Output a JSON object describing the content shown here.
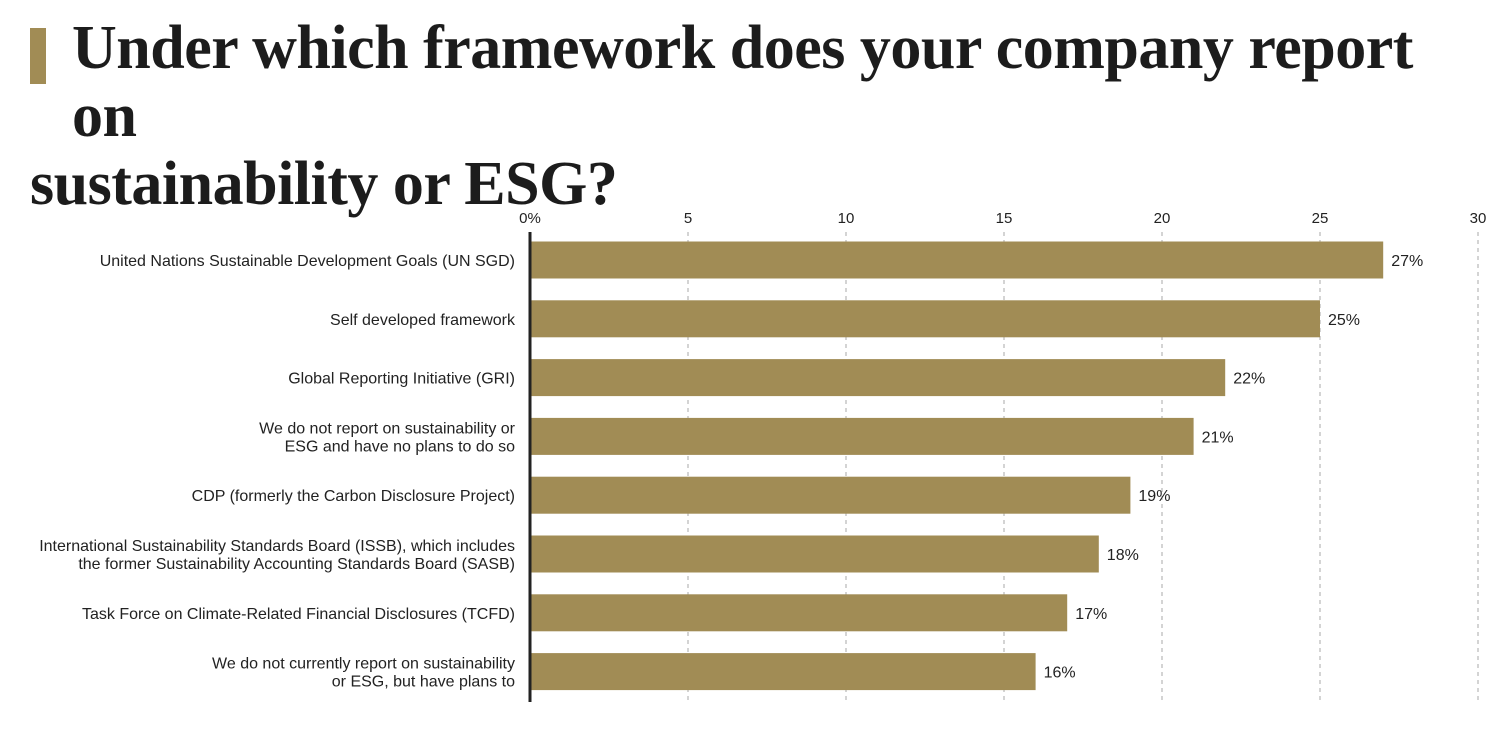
{
  "title_line1": "Under which framework does your company report on",
  "title_line2": "sustainability or ESG?",
  "colors": {
    "bar": "#a18c55",
    "accent": "#a18c55",
    "grid": "#aaaaaa",
    "axis": "#222222"
  },
  "chart_data": {
    "type": "bar",
    "orientation": "horizontal",
    "title": "Under which framework does your company report on sustainability or ESG?",
    "xlabel": "",
    "ylabel": "",
    "xlim": [
      0,
      30
    ],
    "x_ticks": [
      0,
      5,
      10,
      15,
      20,
      25,
      30
    ],
    "x_tick_labels": [
      "0%",
      "5",
      "10",
      "15",
      "20",
      "25",
      "30"
    ],
    "grid": "vertical dashed",
    "legend": "none",
    "categories": [
      [
        "United Nations Sustainable Development Goals (UN SGD)"
      ],
      [
        "Self developed framework"
      ],
      [
        "Global Reporting Initiative (GRI)"
      ],
      [
        "We do not report on sustainability or",
        "ESG and have no plans to do so"
      ],
      [
        "CDP (formerly the Carbon Disclosure Project)"
      ],
      [
        "International Sustainability Standards Board (ISSB), which includes",
        "the former Sustainability Accounting Standards Board (SASB)"
      ],
      [
        "Task Force on Climate-Related Financial Disclosures (TCFD)"
      ],
      [
        "We do not currently report on sustainability",
        "or ESG, but have plans to"
      ]
    ],
    "values": [
      27,
      25,
      22,
      21,
      19,
      18,
      17,
      16
    ],
    "value_labels": [
      "27%",
      "25%",
      "22%",
      "21%",
      "19%",
      "18%",
      "17%",
      "16%"
    ]
  }
}
